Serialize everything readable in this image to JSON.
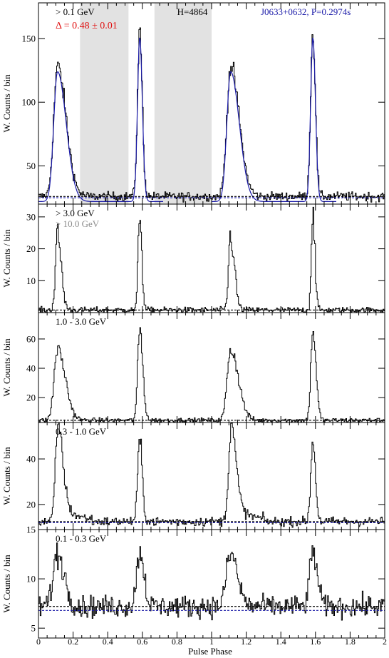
{
  "figure": {
    "xlabel": "Pulse Phase",
    "ylabel": "W. Counts / bin",
    "x_ticks": [
      "0",
      "0.2",
      "0.4",
      "0.6",
      "0.8",
      "1",
      "1.2",
      "1.4",
      "1.6",
      "1.8",
      "2"
    ]
  },
  "chart_data": [
    {
      "type": "line",
      "energy_label": "> 0.1 GeV",
      "delta_label": "Δ = 0.48 ± 0.01",
      "h_label": "H=4864",
      "source_label": "J0633+0632, P=0.2974s",
      "ylabel": "W. Counts / bin",
      "ylim": [
        20,
        178
      ],
      "yticks": [
        50,
        100,
        150
      ],
      "background_level": 26,
      "background_level_2": 25,
      "shaded_phase_ranges": [
        [
          0.24,
          0.52
        ],
        [
          0.67,
          1.0
        ]
      ],
      "peaks": [
        {
          "phase": 0.11,
          "height": 128,
          "width_rise": 0.022,
          "width_fall": 0.05
        },
        {
          "phase": 0.585,
          "height": 155,
          "width_rise": 0.013,
          "width_fall": 0.015
        }
      ],
      "model_fit": true,
      "noise": 3.5
    },
    {
      "type": "line",
      "energy_label": "> 3.0 GeV",
      "energy_label_2": "> 10.0 GeV",
      "ylabel": "W. Counts / bin",
      "ylim": [
        0,
        34
      ],
      "yticks": [
        10,
        20,
        30
      ],
      "background_level": 0.8,
      "peaks": [
        {
          "phase": 0.11,
          "height": 24,
          "width_rise": 0.012,
          "width_fall": 0.022
        },
        {
          "phase": 0.585,
          "height": 32,
          "width_rise": 0.009,
          "width_fall": 0.012
        }
      ],
      "noise": 0.9
    },
    {
      "type": "line",
      "energy_label": "1.0 - 3.0 GeV",
      "ylabel": "W. Counts / bin",
      "ylim": [
        3,
        78
      ],
      "yticks": [
        20,
        40,
        60
      ],
      "background_level": 4.5,
      "peaks": [
        {
          "phase": 0.11,
          "height": 53,
          "width_rise": 0.02,
          "width_fall": 0.045
        },
        {
          "phase": 0.585,
          "height": 66,
          "width_rise": 0.012,
          "width_fall": 0.018
        }
      ],
      "noise": 1.6
    },
    {
      "type": "line",
      "energy_label": "0.3 - 1.0 GeV",
      "ylabel": "W. Counts / bin",
      "ylim": [
        9,
        56
      ],
      "yticks": [
        20,
        40
      ],
      "background_level": 12.5,
      "background_level_2": 12,
      "peaks": [
        {
          "phase": 0.11,
          "height": 49,
          "width_rise": 0.014,
          "width_fall": 0.03,
          "tail": 0.1
        },
        {
          "phase": 0.585,
          "height": 48,
          "width_rise": 0.012,
          "width_fall": 0.015
        }
      ],
      "noise": 2.0
    },
    {
      "type": "line",
      "energy_label": "0.1 - 0.3 GeV",
      "ylabel": "W. Counts / bin",
      "ylim": [
        4,
        15
      ],
      "yticks": [
        5,
        10,
        15
      ],
      "background_level": 7.2,
      "background_level_2": 6.8,
      "peaks": [
        {
          "phase": 0.11,
          "height": 12.5,
          "width_rise": 0.025,
          "width_fall": 0.04
        },
        {
          "phase": 0.585,
          "height": 12.8,
          "width_rise": 0.018,
          "width_fall": 0.025
        }
      ],
      "noise": 1.1
    }
  ]
}
